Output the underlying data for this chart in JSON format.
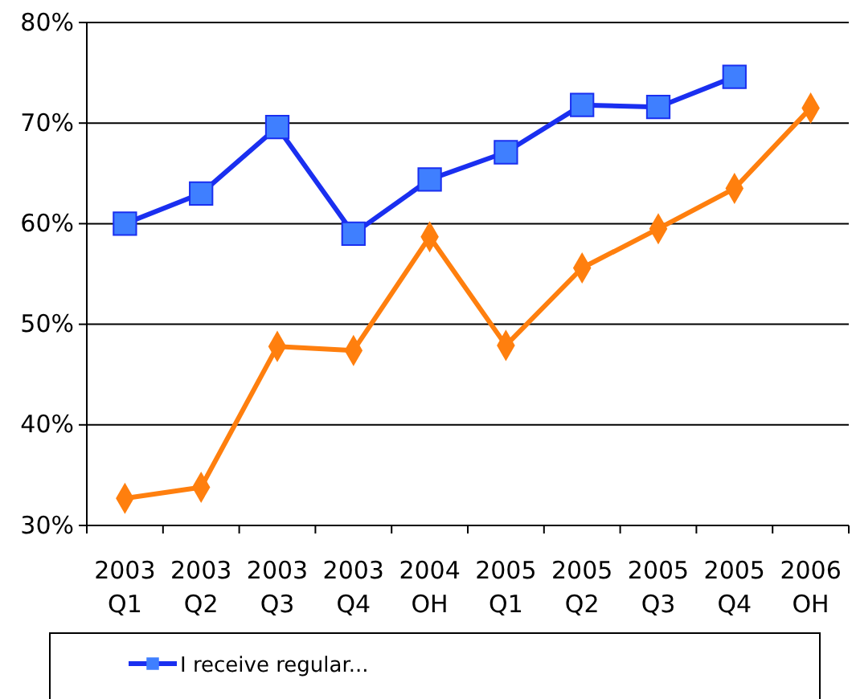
{
  "chart_data": {
    "type": "line",
    "categories": [
      "2003\nQ1",
      "2003\nQ2",
      "2003\nQ3",
      "2003\nQ4",
      "2004\nOH",
      "2005\nQ1",
      "2005\nQ2",
      "2005\nQ3",
      "2005\nQ4",
      "2006\nOH"
    ],
    "series": [
      {
        "name": "I receive regular...",
        "color": "#1a2ff0",
        "marker": "square",
        "values": [
          60.0,
          63.0,
          69.6,
          59.0,
          64.4,
          67.1,
          71.8,
          71.6,
          74.6,
          null
        ]
      },
      {
        "color": "#ff7f0e",
        "marker": "diamond",
        "values": [
          32.7,
          33.8,
          47.8,
          47.4,
          58.7,
          47.9,
          55.6,
          59.5,
          63.5,
          71.5
        ]
      }
    ],
    "ylim": [
      30,
      80
    ],
    "yticks": [
      {
        "value": 30,
        "label": "30%"
      },
      {
        "value": 40,
        "label": "40%"
      },
      {
        "value": 50,
        "label": "50%"
      },
      {
        "value": 60,
        "label": "60%"
      },
      {
        "value": 70,
        "label": "70%"
      },
      {
        "value": 80,
        "label": "80%"
      }
    ],
    "grid": "y",
    "legend": "bottom"
  }
}
